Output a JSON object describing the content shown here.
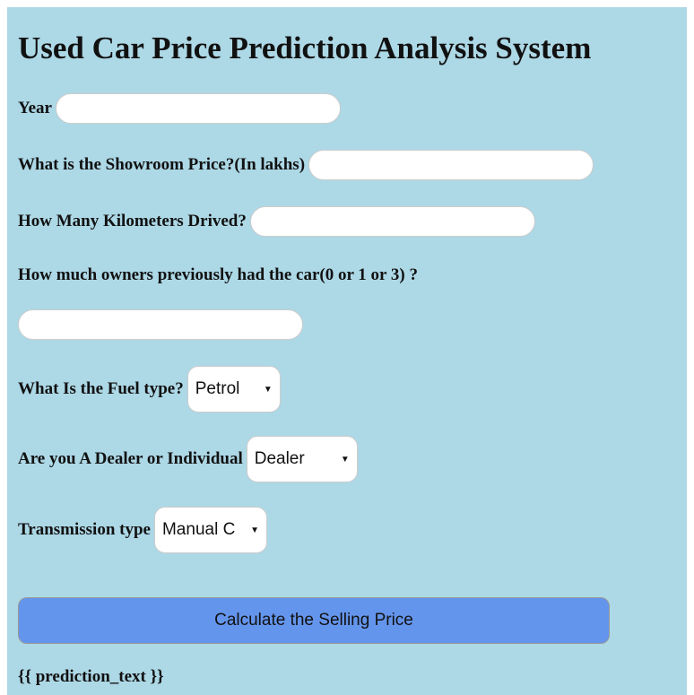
{
  "header": {
    "title": "Used Car Price Prediction Analysis System"
  },
  "form": {
    "year_label": "Year",
    "price_label": "What is the Showroom Price?(In lakhs)",
    "km_label": "How Many Kilometers Drived?",
    "owners_label": "How much owners previously had the car(0 or 1 or 3) ?",
    "fuel_label": "What Is the Fuel type?",
    "fuel_value": "Petrol",
    "dealer_label": "Are you A Dealer or Individual",
    "dealer_value": "Dealer",
    "transmission_label": "Transmission type",
    "transmission_value": "Manual C",
    "submit": "Calculate the Selling Price"
  },
  "prediction_text": "{{ prediction_text }}"
}
